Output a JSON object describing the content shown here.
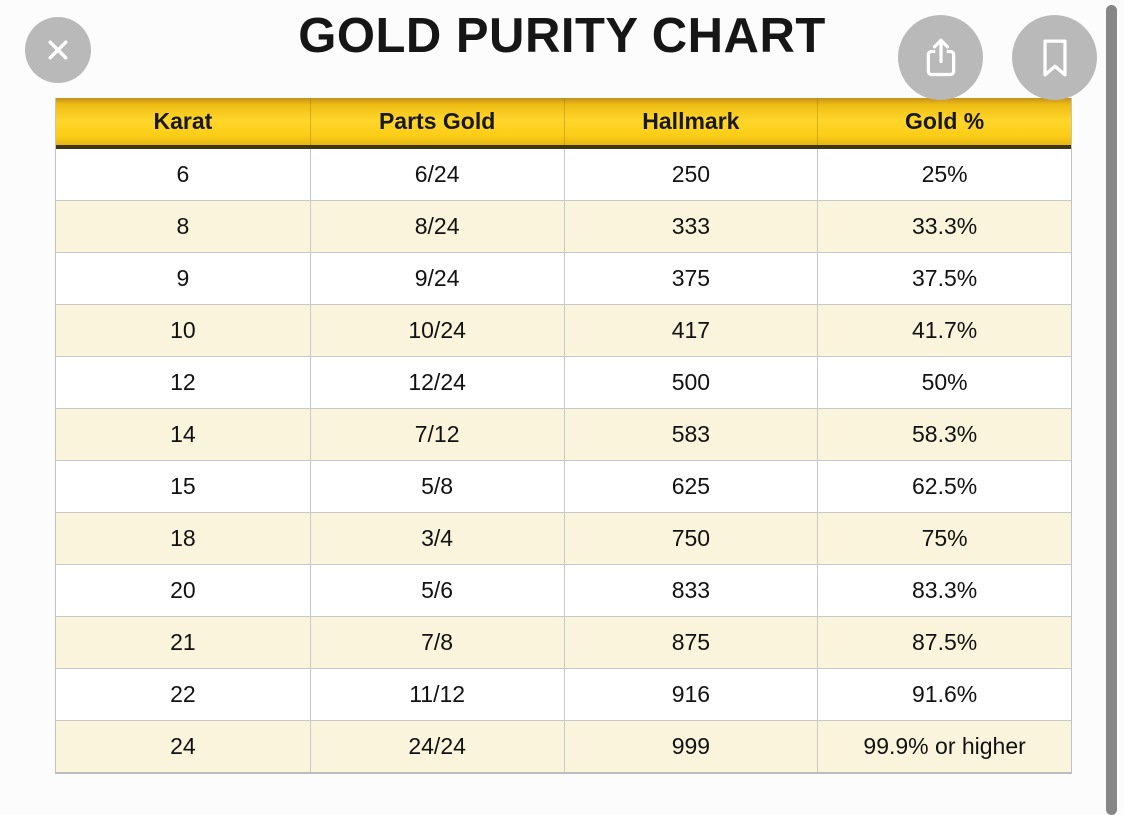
{
  "header": {
    "title": "GOLD PURITY CHART"
  },
  "toolbar": {
    "close_icon": "x-close",
    "share_icon": "share-arrow-up",
    "bookmark_icon": "bookmark-outline"
  },
  "chart_data": {
    "type": "table",
    "title": "GOLD PURITY CHART",
    "columns": [
      "Karat",
      "Parts Gold",
      "Hallmark",
      "Gold %"
    ],
    "rows": [
      [
        "6",
        "6/24",
        "250",
        "25%"
      ],
      [
        "8",
        "8/24",
        "333",
        "33.3%"
      ],
      [
        "9",
        "9/24",
        "375",
        "37.5%"
      ],
      [
        "10",
        "10/24",
        "417",
        "41.7%"
      ],
      [
        "12",
        "12/24",
        "500",
        "50%"
      ],
      [
        "14",
        "7/12",
        "583",
        "58.3%"
      ],
      [
        "15",
        "5/8",
        "625",
        "62.5%"
      ],
      [
        "18",
        "3/4",
        "750",
        "75%"
      ],
      [
        "20",
        "5/6",
        "833",
        "83.3%"
      ],
      [
        "21",
        "7/8",
        "875",
        "87.5%"
      ],
      [
        "22",
        "11/12",
        "916",
        "91.6%"
      ],
      [
        "24",
        "24/24",
        "999",
        "99.9% or higher"
      ]
    ]
  },
  "colors": {
    "header_gold_top": "#c2911f",
    "header_gold_main": "#ffd62b",
    "header_underline": "#3f3512",
    "row_alt_cream": "#fbf4dc",
    "button_gray": "#b9b9b9",
    "icon_white": "#ffffff",
    "scrollbar_gray": "#878787",
    "text_dark": "#161616"
  }
}
